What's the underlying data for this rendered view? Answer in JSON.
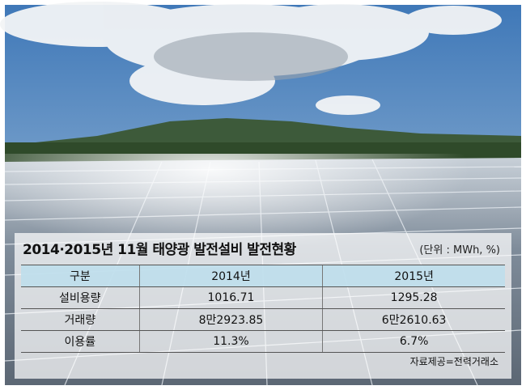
{
  "header": {
    "title": "2014·2015년 11월 태양광 발전설비 발전현황",
    "unit": "(단위 : MWh, %)"
  },
  "table": {
    "columns": [
      "구분",
      "2014년",
      "2015년"
    ],
    "rows": [
      [
        "설비용량",
        "1016.71",
        "1295.28"
      ],
      [
        "거래량",
        "8만2923.85",
        "6만2610.63"
      ],
      [
        "이용률",
        "11.3%",
        "6.7%"
      ]
    ]
  },
  "footer": {
    "source": "자료제공=전력거래소"
  }
}
